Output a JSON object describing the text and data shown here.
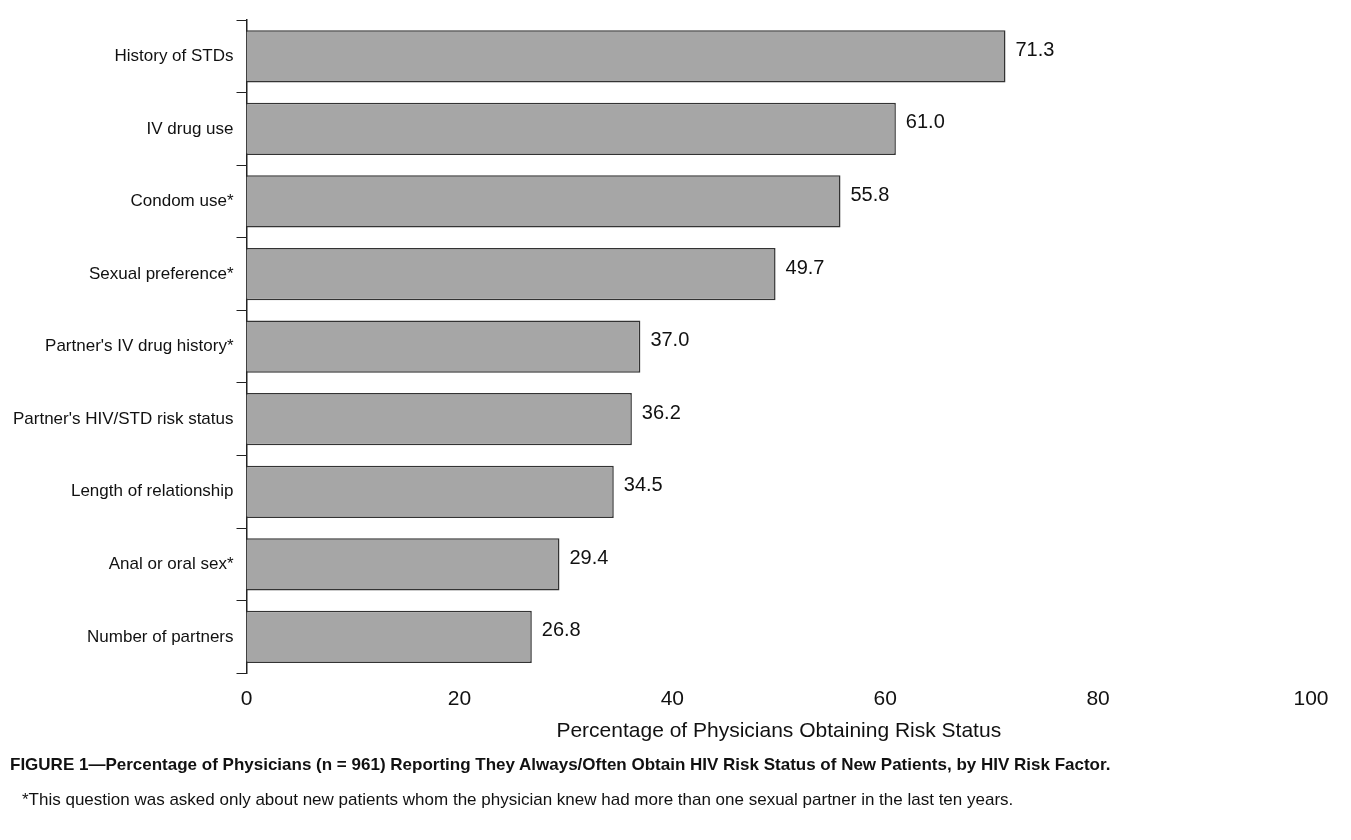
{
  "chart_data": {
    "type": "bar",
    "orientation": "horizontal",
    "title": "FIGURE 1—Percentage of Physicians (n = 961) Reporting They Always/Often Obtain HIV Risk Status of New Patients, by HIV Risk Factor.",
    "xlabel": "Percentage of Physicians Obtaining Risk Status",
    "categories": [
      "History of STDs",
      "IV drug use",
      "Condom use*",
      "Sexual preference*",
      "Partner's IV drug history*",
      "Partner's HIV/STD risk status",
      "Length of relationship",
      "Anal or oral sex*",
      "Number of partners"
    ],
    "values": [
      71.3,
      61.0,
      55.8,
      49.7,
      37.0,
      36.2,
      34.5,
      29.4,
      26.8
    ],
    "value_labels": [
      "71.3",
      "61.0",
      "55.8",
      "49.7",
      "37.0",
      "36.2",
      "34.5",
      "29.4",
      "26.8"
    ],
    "color": "#a6a6a6",
    "xlim": [
      0,
      100
    ],
    "xticks": [
      0,
      20,
      40,
      60,
      80,
      100
    ],
    "grid": false,
    "legend": false,
    "annotations": [
      "*This question was asked only about new patients whom the physician knew had more than one sexual partner in the last ten years."
    ]
  }
}
